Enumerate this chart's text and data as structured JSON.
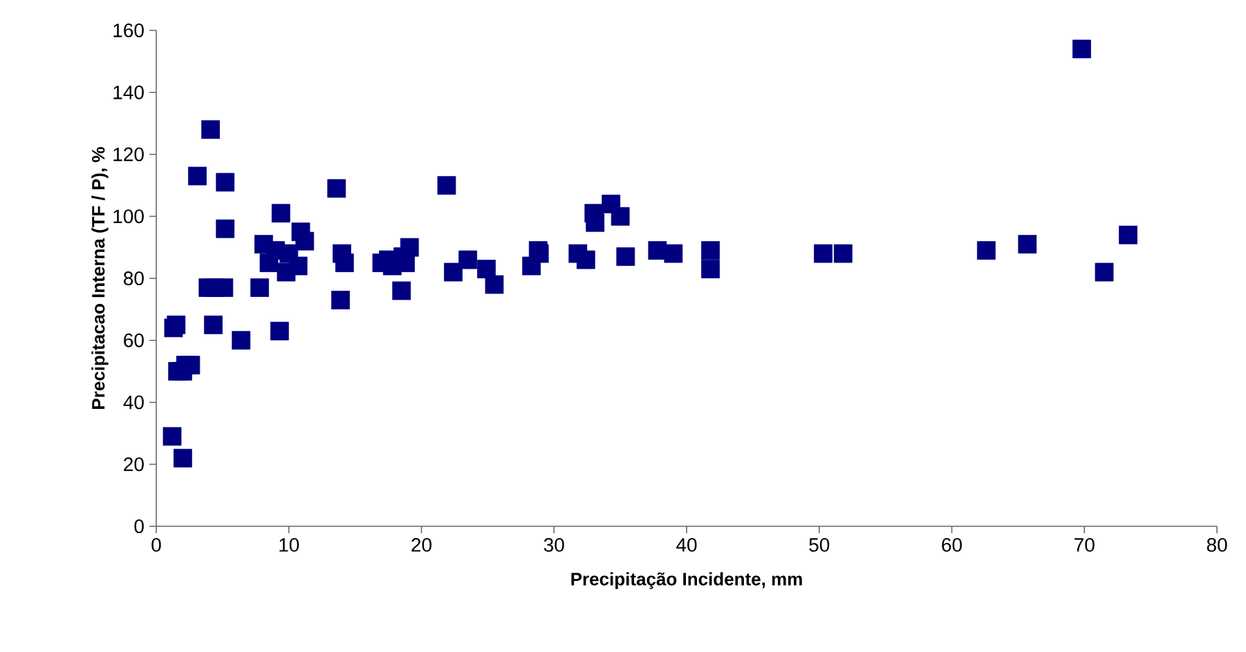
{
  "chart_data": {
    "type": "scatter",
    "xlabel": "Precipitação Incidente, mm",
    "ylabel": "Precipitacao Interna (TF / P), %",
    "marker": "square",
    "grid": false,
    "xlim": [
      0,
      80
    ],
    "ylim": [
      0,
      160
    ],
    "xticks": [
      0,
      10,
      20,
      30,
      40,
      50,
      60,
      70,
      80
    ],
    "yticks": [
      0,
      20,
      40,
      60,
      80,
      100,
      120,
      140,
      160
    ],
    "series": [
      {
        "color": "#000080",
        "x": [
          1.2,
          1.3,
          1.5,
          1.6,
          2,
          2,
          2.2,
          2.6,
          3.1,
          3.9,
          4.1,
          4.3,
          4.4,
          5.1,
          5.2,
          5.2,
          6.4,
          7.8,
          8.1,
          8.5,
          9,
          9.3,
          9.4,
          9.8,
          10,
          10.7,
          10.9,
          11.2,
          13.6,
          13.9,
          14,
          14.2,
          17,
          17.5,
          17.8,
          18.5,
          18.6,
          18.8,
          19.1,
          21.9,
          22.4,
          23.5,
          24.9,
          25.5,
          28.3,
          28.8,
          28.9,
          31.8,
          32.4,
          33,
          33.1,
          34.3,
          35,
          35.4,
          37.8,
          39,
          41.8,
          41.8,
          50.3,
          51.8,
          62.6,
          65.7,
          69.8,
          71.5,
          73.3
        ],
        "values": [
          29,
          64,
          65,
          50,
          50,
          22,
          52,
          52,
          113,
          77,
          128,
          65,
          77,
          77,
          111,
          96,
          60,
          77,
          91,
          85,
          89,
          63,
          101,
          82,
          88,
          84,
          95,
          92,
          109,
          73,
          88,
          85,
          85,
          86,
          84,
          76,
          87,
          85,
          90,
          110,
          82,
          86,
          83,
          78,
          84,
          89,
          88,
          88,
          86,
          101,
          98,
          104,
          100,
          87,
          89,
          88,
          89,
          83,
          88,
          88,
          89,
          91,
          154,
          82,
          94
        ]
      }
    ]
  }
}
